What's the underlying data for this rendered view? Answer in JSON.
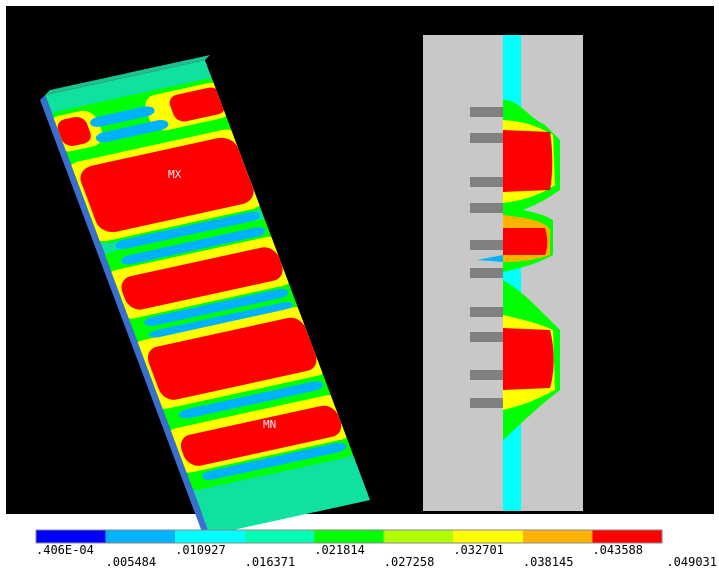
{
  "plot_labels": {
    "max": "MX",
    "min": "MN"
  },
  "legend": {
    "colors": [
      "#0000ff",
      "#00b2ff",
      "#00ffff",
      "#00ffb2",
      "#00ff00",
      "#b2ff00",
      "#ffff00",
      "#ffb200",
      "#ff0000"
    ],
    "labels": [
      ".406E-04",
      ".005484",
      ".010927",
      ".016371",
      ".021814",
      ".027258",
      ".032701",
      ".038145",
      ".043588",
      ".049031"
    ]
  }
}
